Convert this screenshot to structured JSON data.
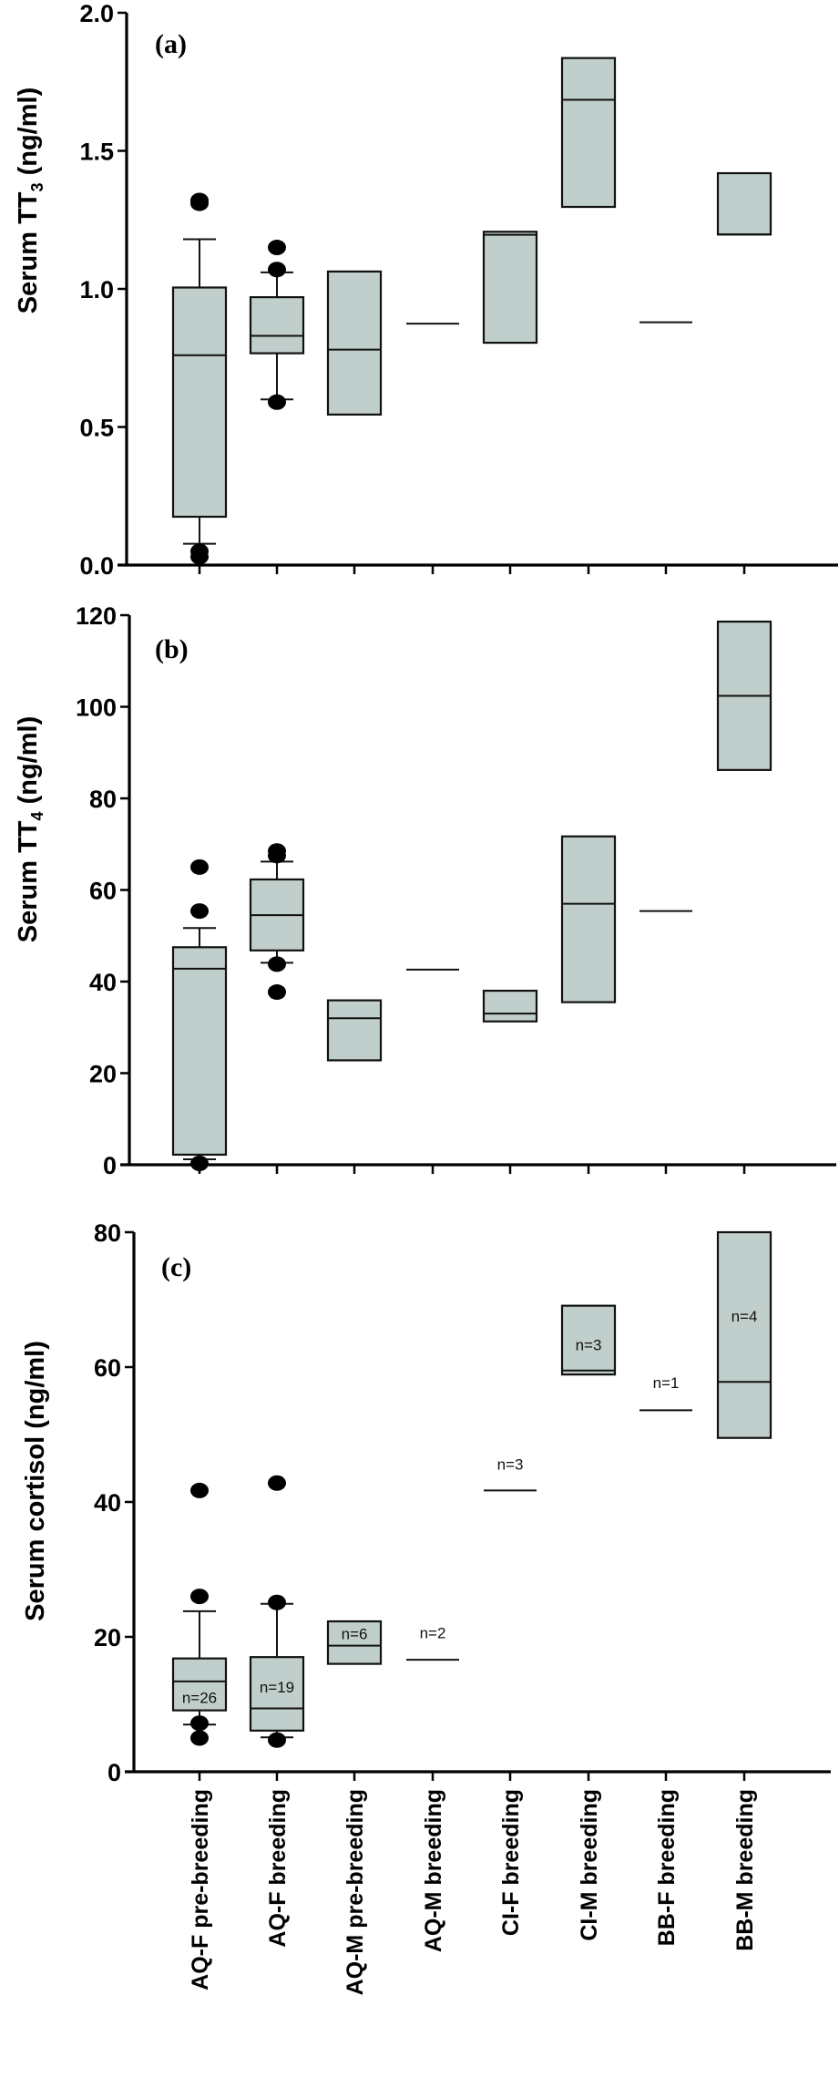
{
  "colors": {
    "box_fill": "#c1cfcc",
    "stroke": "#111111",
    "outlier": "#000000"
  },
  "chart_data": [
    {
      "type": "box",
      "panel_label": "(a)",
      "ylabel": {
        "prefix": "Serum TT",
        "subscript": "3",
        "suffix": " (ng/ml)"
      },
      "ylim": [
        0,
        2.0
      ],
      "yticks": [
        "0.0",
        "0.5",
        "1.0",
        "1.5",
        "2.0"
      ],
      "ytick_values": [
        0,
        0.5,
        1.0,
        1.5,
        2.0
      ],
      "categories": [
        "AQ-F pre-breeding",
        "AQ-F breeding",
        "AQ-M pre-breeding",
        "AQ-M breeding",
        "CI-F breeding",
        "CI-M breeding",
        "BB-F breeding",
        "BB-M breeding"
      ],
      "boxes": [
        {
          "q1": 0.175,
          "median": 0.76,
          "q3": 1.005,
          "whisker_low": 0.077,
          "whisker_high": 1.18,
          "outliers": [
            1.32,
            1.31,
            0.05,
            0.03
          ]
        },
        {
          "q1": 0.767,
          "median": 0.83,
          "q3": 0.97,
          "whisker_low": 0.6,
          "whisker_high": 1.06,
          "outliers": [
            1.15,
            1.07,
            0.59
          ]
        },
        {
          "q1": 0.545,
          "median": 0.78,
          "q3": 1.063,
          "whisker_low": null,
          "whisker_high": null,
          "outliers": []
        },
        {
          "q1": 0.874,
          "median": 0.874,
          "q3": 0.874,
          "whisker_low": null,
          "whisker_high": null,
          "outliers": []
        },
        {
          "q1": 0.805,
          "median": 1.196,
          "q3": 1.207,
          "whisker_low": null,
          "whisker_high": null,
          "outliers": []
        },
        {
          "q1": 1.297,
          "median": 1.685,
          "q3": 1.836,
          "whisker_low": null,
          "whisker_high": null,
          "outliers": []
        },
        {
          "q1": 0.879,
          "median": 0.879,
          "q3": 0.879,
          "whisker_low": null,
          "whisker_high": null,
          "outliers": []
        },
        {
          "q1": 1.197,
          "median": 1.197,
          "q3": 1.419,
          "whisker_low": null,
          "whisker_high": null,
          "outliers": []
        }
      ],
      "n_labels": []
    },
    {
      "type": "box",
      "panel_label": "(b)",
      "ylabel": {
        "prefix": "Serum TT",
        "subscript": "4",
        "suffix": " (ng/ml)"
      },
      "ylim": [
        0,
        120
      ],
      "yticks": [
        "0",
        "20",
        "40",
        "60",
        "80",
        "100",
        "120"
      ],
      "ytick_values": [
        0,
        20,
        40,
        60,
        80,
        100,
        120
      ],
      "categories": [
        "AQ-F pre-breeding",
        "AQ-F breeding",
        "AQ-M pre-breeding",
        "AQ-M breeding",
        "CI-F breeding",
        "CI-M breeding",
        "BB-F breeding",
        "BB-M breeding"
      ],
      "boxes": [
        {
          "q1": 2.2,
          "median": 42.8,
          "q3": 47.5,
          "whisker_low": 1.2,
          "whisker_high": 51.7,
          "outliers": [
            65.0,
            55.4,
            0.3
          ]
        },
        {
          "q1": 46.8,
          "median": 54.5,
          "q3": 62.3,
          "whisker_low": 44.1,
          "whisker_high": 66.2,
          "outliers": [
            68.5,
            67.5,
            43.8,
            37.7
          ]
        },
        {
          "q1": 22.8,
          "median": 32.0,
          "q3": 35.9,
          "whisker_low": null,
          "whisker_high": null,
          "outliers": []
        },
        {
          "q1": 42.6,
          "median": 42.6,
          "q3": 42.6,
          "whisker_low": null,
          "whisker_high": null,
          "outliers": []
        },
        {
          "q1": 31.3,
          "median": 33.0,
          "q3": 38.0,
          "whisker_low": null,
          "whisker_high": null,
          "outliers": []
        },
        {
          "q1": 35.5,
          "median": 57.0,
          "q3": 71.7,
          "whisker_low": null,
          "whisker_high": null,
          "outliers": []
        },
        {
          "q1": 55.4,
          "median": 55.4,
          "q3": 55.4,
          "whisker_low": null,
          "whisker_high": null,
          "outliers": []
        },
        {
          "q1": 86.2,
          "median": 102.4,
          "q3": 118.6,
          "whisker_low": null,
          "whisker_high": null,
          "outliers": []
        }
      ],
      "n_labels": []
    },
    {
      "type": "box",
      "panel_label": "(c)",
      "ylabel": {
        "prefix": "Serum cortisol (ng/ml)",
        "subscript": "",
        "suffix": ""
      },
      "ylim": [
        0,
        80
      ],
      "yticks": [
        "0",
        "20",
        "40",
        "60",
        "80"
      ],
      "ytick_values": [
        0,
        20,
        40,
        60,
        80
      ],
      "categories": [
        "AQ-F pre-breeding",
        "AQ-F breeding",
        "AQ-M pre-breeding",
        "AQ-M breeding",
        "CI-F breeding",
        "CI-M breeding",
        "BB-F breeding",
        "BB-M breeding"
      ],
      "boxes": [
        {
          "q1": 9.1,
          "median": 13.4,
          "q3": 16.8,
          "whisker_low": 7.0,
          "whisker_high": 23.8,
          "outliers": [
            41.7,
            26.0,
            7.2,
            5.0
          ]
        },
        {
          "q1": 6.1,
          "median": 9.4,
          "q3": 17.0,
          "whisker_low": 5.1,
          "whisker_high": 24.9,
          "outliers": [
            42.8,
            25.1,
            4.7
          ]
        },
        {
          "q1": 16.0,
          "median": 18.7,
          "q3": 22.3,
          "whisker_low": null,
          "whisker_high": null,
          "outliers": []
        },
        {
          "q1": 16.6,
          "median": 16.6,
          "q3": 16.6,
          "whisker_low": null,
          "whisker_high": null,
          "outliers": []
        },
        {
          "q1": 41.7,
          "median": 41.7,
          "q3": 41.7,
          "whisker_low": null,
          "whisker_high": null,
          "outliers": []
        },
        {
          "q1": 58.9,
          "median": 59.5,
          "q3": 69.1,
          "whisker_low": null,
          "whisker_high": null,
          "outliers": []
        },
        {
          "q1": 53.6,
          "median": 53.6,
          "q3": 53.6,
          "whisker_low": null,
          "whisker_high": null,
          "outliers": []
        },
        {
          "q1": 49.5,
          "median": 57.8,
          "q3": 80.0,
          "whisker_low": null,
          "whisker_high": null,
          "outliers": []
        }
      ],
      "n_labels": [
        {
          "text": "n=26",
          "category": 0,
          "value": 11.0
        },
        {
          "text": "n=19",
          "category": 1,
          "value": 12.6
        },
        {
          "text": "n=6",
          "category": 2,
          "value": 20.5
        },
        {
          "text": "n=2",
          "category": 3,
          "value": 20.6
        },
        {
          "text": "n=3",
          "category": 4,
          "value": 45.6
        },
        {
          "text": "n=3",
          "category": 5,
          "value": 63.3
        },
        {
          "text": "n=1",
          "category": 6,
          "value": 57.7
        },
        {
          "text": "n=4",
          "category": 7,
          "value": 67.6
        }
      ]
    }
  ]
}
